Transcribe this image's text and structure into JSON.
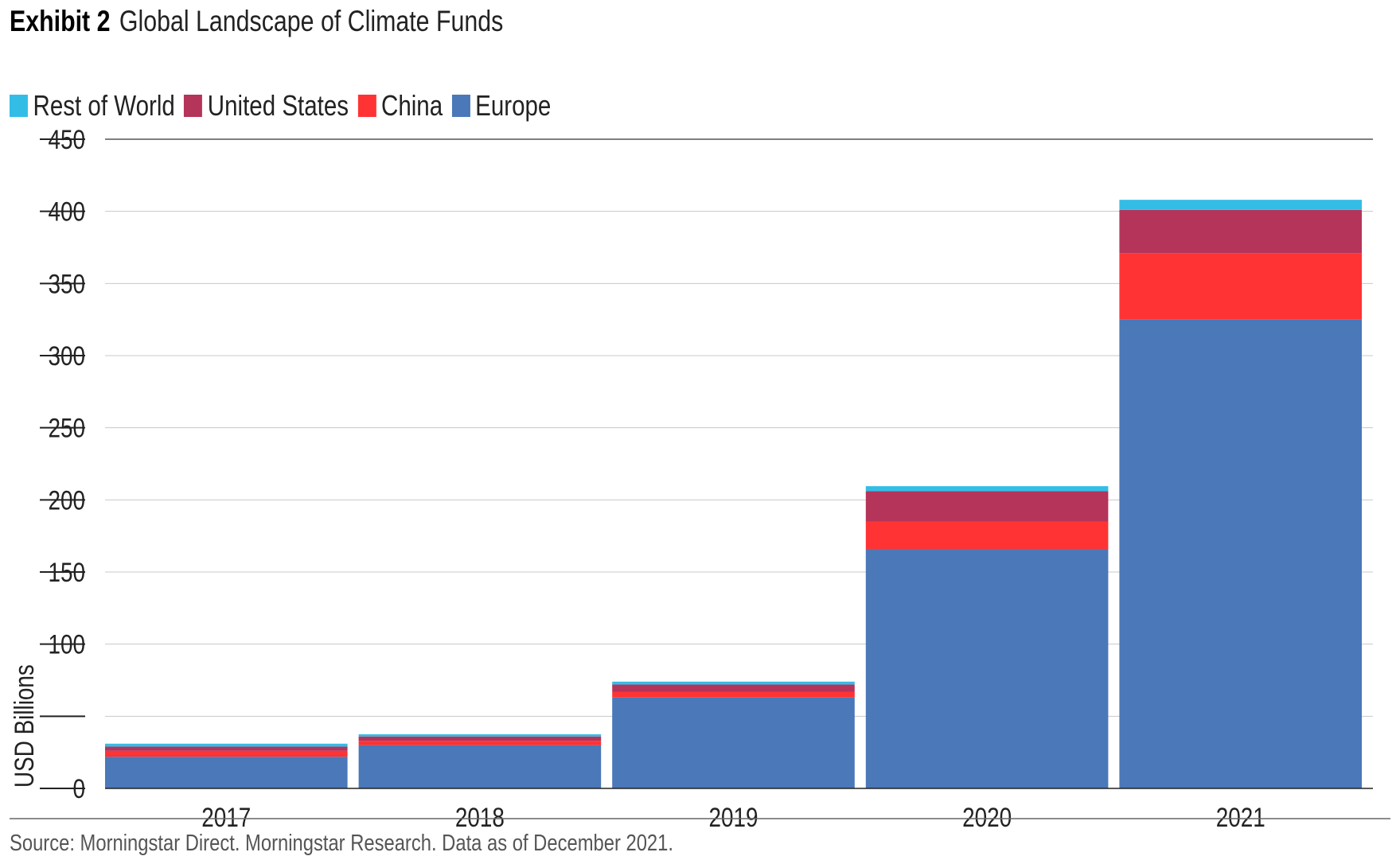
{
  "header": {
    "exhibit_label": "Exhibit 2",
    "title": "Global Landscape of Climate Funds"
  },
  "footer": {
    "source": "Source: Morningstar Direct. Morningstar Research. Data as of December 2021."
  },
  "chart_data": {
    "type": "bar",
    "stacked": true,
    "title": "Global Landscape of Climate Funds",
    "xlabel": "",
    "ylabel": "USD Billions",
    "categories": [
      "2017",
      "2018",
      "2019",
      "2020",
      "2021"
    ],
    "ylim": [
      0,
      450
    ],
    "yticks": [
      0,
      100,
      150,
      200,
      250,
      300,
      350,
      400,
      450
    ],
    "grid": true,
    "legend_position": "top-left",
    "series": [
      {
        "name": "Europe",
        "color": "#4a78b8",
        "values": [
          22,
          30,
          63,
          166,
          325
        ]
      },
      {
        "name": "China",
        "color": "#ff3333",
        "values": [
          4,
          3,
          4,
          19,
          46
        ]
      },
      {
        "name": "United States",
        "color": "#b5345a",
        "values": [
          3,
          3,
          5,
          21,
          30
        ]
      },
      {
        "name": "Rest of World",
        "color": "#33bde6",
        "values": [
          2,
          1.5,
          2,
          3.5,
          7
        ]
      }
    ],
    "legend_order": [
      "Rest of World",
      "United States",
      "China",
      "Europe"
    ]
  }
}
